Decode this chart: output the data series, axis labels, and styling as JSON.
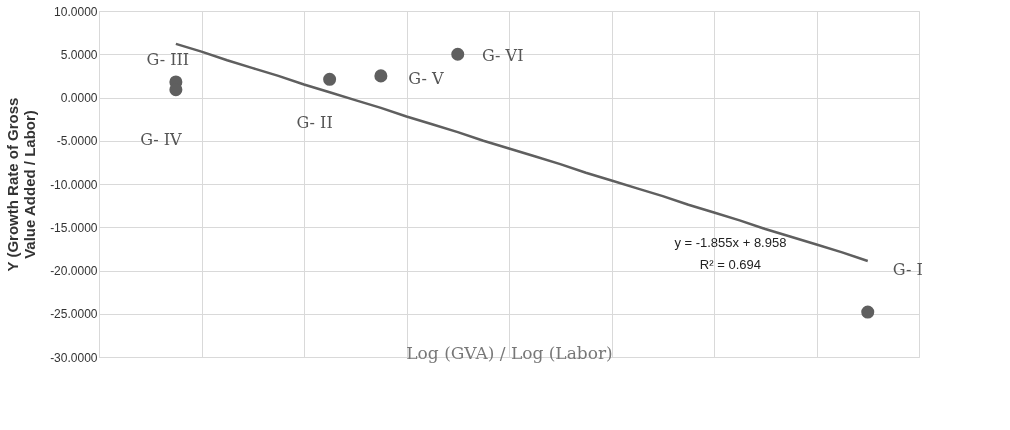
{
  "chart_data": {
    "type": "scatter",
    "xlabel": "Log (GVA) / Log (Labor)",
    "ylabel": "Y (Growth Rate of Gross Value Added / Labor)",
    "categories": [
      null,
      null,
      null,
      null,
      null,
      null,
      null,
      null,
      null,
      null,
      null,
      null,
      null,
      null,
      null,
      null,
      null,
      null,
      null,
      null,
      null,
      null,
      null,
      null,
      null,
      null,
      null,
      null,
      null,
      null,
      null,
      null,
      null
    ],
    "series": [
      {
        "color": "#5f5f5f",
        "values": [
          null,
          null,
          null,
          1.8,
          null,
          null,
          null,
          null,
          null,
          2.1,
          null,
          2.5,
          null,
          null,
          5.0,
          null,
          null,
          null,
          null,
          null,
          null,
          null,
          null,
          null,
          null,
          null,
          null,
          null,
          null,
          null,
          -24.8,
          null,
          null
        ],
        "value_labels": [
          null,
          null,
          null,
          "G- III",
          null,
          null,
          null,
          null,
          null,
          "G- II",
          null,
          "G- V",
          null,
          null,
          "G- VI",
          null,
          null,
          null,
          null,
          null,
          null,
          null,
          null,
          null,
          null,
          null,
          null,
          null,
          null,
          null,
          "G- I",
          null,
          null
        ]
      },
      {
        "color": "#5f5f5f",
        "values": [
          null,
          null,
          null,
          0.9,
          null,
          null,
          null,
          null,
          null,
          null,
          null,
          null,
          null,
          null,
          null,
          null,
          null,
          null,
          null,
          null,
          null,
          null,
          null,
          null,
          null,
          null,
          null,
          null,
          null,
          null,
          null,
          null,
          null
        ],
        "value_labels": [
          null,
          null,
          null,
          "G- IV",
          null,
          null,
          null,
          null,
          null,
          null,
          null,
          null,
          null,
          null,
          null,
          null,
          null,
          null,
          null,
          null,
          null,
          null,
          null,
          null,
          null,
          null,
          null,
          null,
          null,
          null,
          null,
          null,
          null
        ]
      },
      {
        "type": "line",
        "marker": "none",
        "color": "#5f5f5f",
        "values": [
          null,
          null,
          null,
          6.2,
          5.3,
          4.3,
          3.4,
          2.5,
          1.5,
          0.6,
          -0.3,
          -1.2,
          -2.2,
          -3.1,
          -4.0,
          -5.0,
          -5.9,
          -6.8,
          -7.7,
          -8.7,
          -9.6,
          -10.5,
          -11.4,
          -12.4,
          -13.3,
          -14.2,
          -15.2,
          -16.1,
          -17.0,
          -17.9,
          -18.9,
          null,
          null
        ]
      }
    ],
    "marker": "circle",
    "ylim": [
      -30,
      10
    ],
    "yticks": [
      {
        "value": 10,
        "label": "10.0000"
      },
      {
        "value": 5,
        "label": "5.0000"
      },
      {
        "value": 0,
        "label": "0.0000"
      },
      {
        "value": -5,
        "label": "-5.0000"
      },
      {
        "value": -10,
        "label": "-10.0000"
      },
      {
        "value": -15,
        "label": "-15.0000"
      },
      {
        "value": -20,
        "label": "-20.0000"
      },
      {
        "value": -25,
        "label": "-25.0000"
      },
      {
        "value": -30,
        "label": "-30.0000"
      }
    ],
    "grid": true,
    "annotations": [
      "y = -1.855x  + 8.958",
      "R² = 0.694"
    ]
  }
}
